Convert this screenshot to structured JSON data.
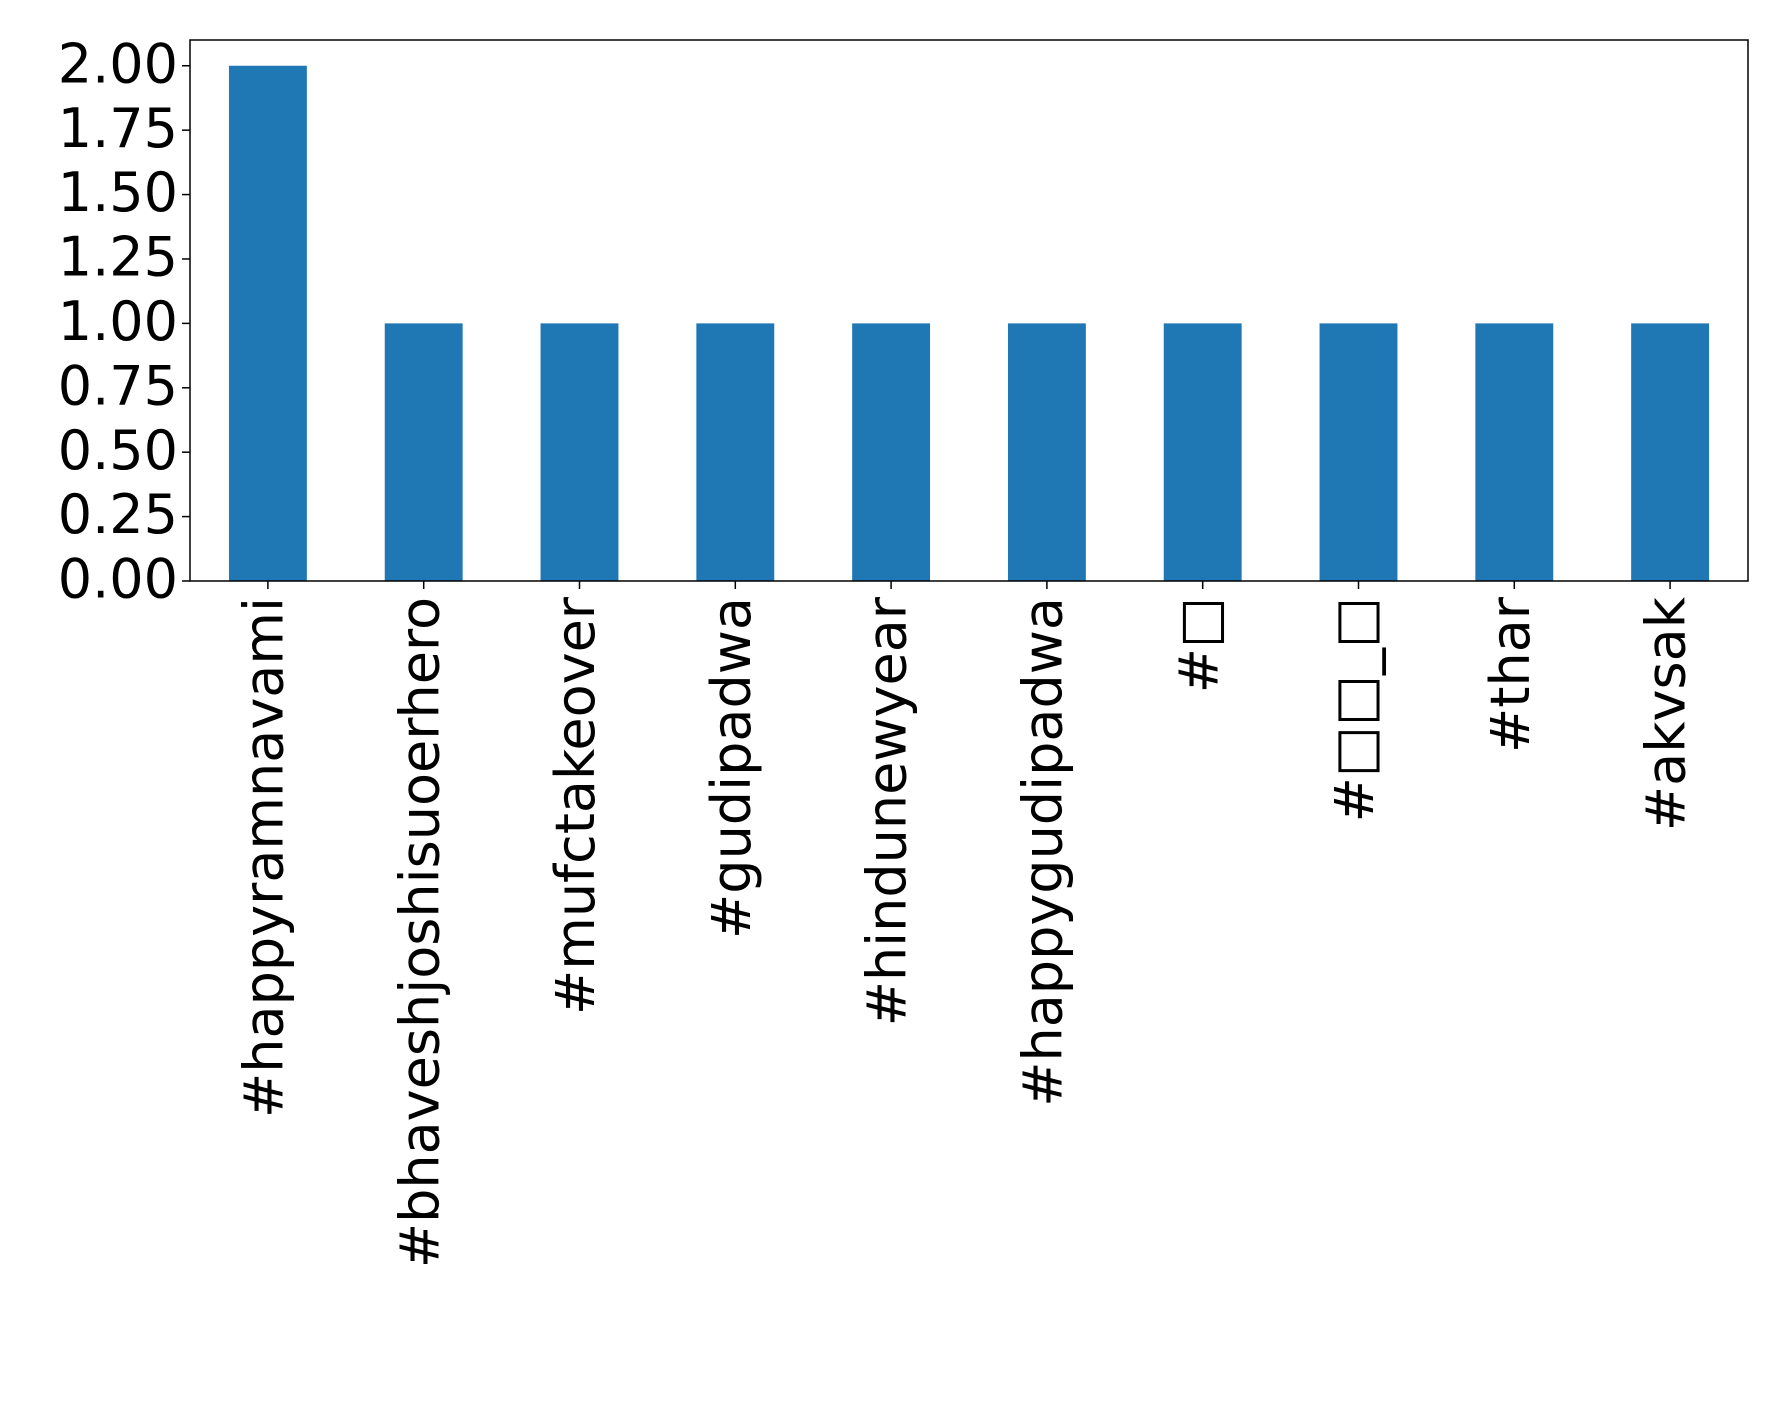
{
  "chart_data": {
    "type": "bar",
    "categories": [
      "#happyramnavami",
      "#bhaveshjoshisuoerhero",
      "#mufctakeover",
      "#gudipadwa",
      "#hindunewyear",
      "#happygudipadwa",
      "#□",
      "#□□_□",
      "#thar",
      "#akvsak"
    ],
    "values": [
      2,
      1,
      1,
      1,
      1,
      1,
      1,
      1,
      1,
      1
    ],
    "color": "#1f77b4",
    "ylim": [
      0,
      2.1
    ],
    "yticks": [
      {
        "value": 0,
        "label": "0.00"
      },
      {
        "value": 0.25,
        "label": "0.25"
      },
      {
        "value": 0.5,
        "label": "0.50"
      },
      {
        "value": 0.75,
        "label": "0.75"
      },
      {
        "value": 1,
        "label": "1.00"
      },
      {
        "value": 1.25,
        "label": "1.25"
      },
      {
        "value": 1.5,
        "label": "1.50"
      },
      {
        "value": 1.75,
        "label": "1.75"
      },
      {
        "value": 2,
        "label": "2.00"
      }
    ],
    "grid": false
  }
}
